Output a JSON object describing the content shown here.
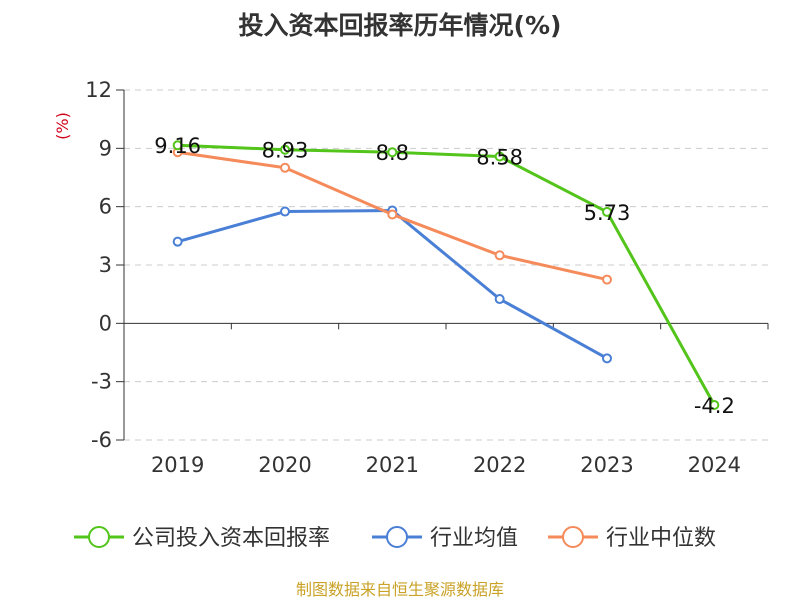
{
  "title": "投入资本回报率历年情况(%)",
  "footer": "制图数据来自恒生聚源数据库",
  "chart_data": {
    "type": "line",
    "title": "投入资本回报率历年情况(%)",
    "xlabel": "",
    "ylabel": "(%)",
    "categories": [
      "2019",
      "2020",
      "2021",
      "2022",
      "2023",
      "2024"
    ],
    "ylim": [
      -6,
      12
    ],
    "yticks": [
      12,
      9,
      6,
      3,
      0,
      -3,
      -6
    ],
    "grid": true,
    "legend_position": "bottom",
    "series": [
      {
        "name": "公司投入资本回报率",
        "color": "#52c41a",
        "values": [
          9.16,
          8.93,
          8.8,
          8.58,
          5.73,
          -4.2
        ],
        "labels": [
          "9.16",
          "8.93",
          "8.8",
          "8.58",
          "5.73",
          "-4.2"
        ]
      },
      {
        "name": "行业均值",
        "color": "#4a7fd6",
        "values": [
          4.2,
          5.75,
          5.8,
          1.25,
          -1.8,
          null
        ]
      },
      {
        "name": "行业中位数",
        "color": "#f58a5a",
        "values": [
          8.8,
          8.0,
          5.6,
          3.5,
          2.25,
          null
        ]
      }
    ]
  }
}
